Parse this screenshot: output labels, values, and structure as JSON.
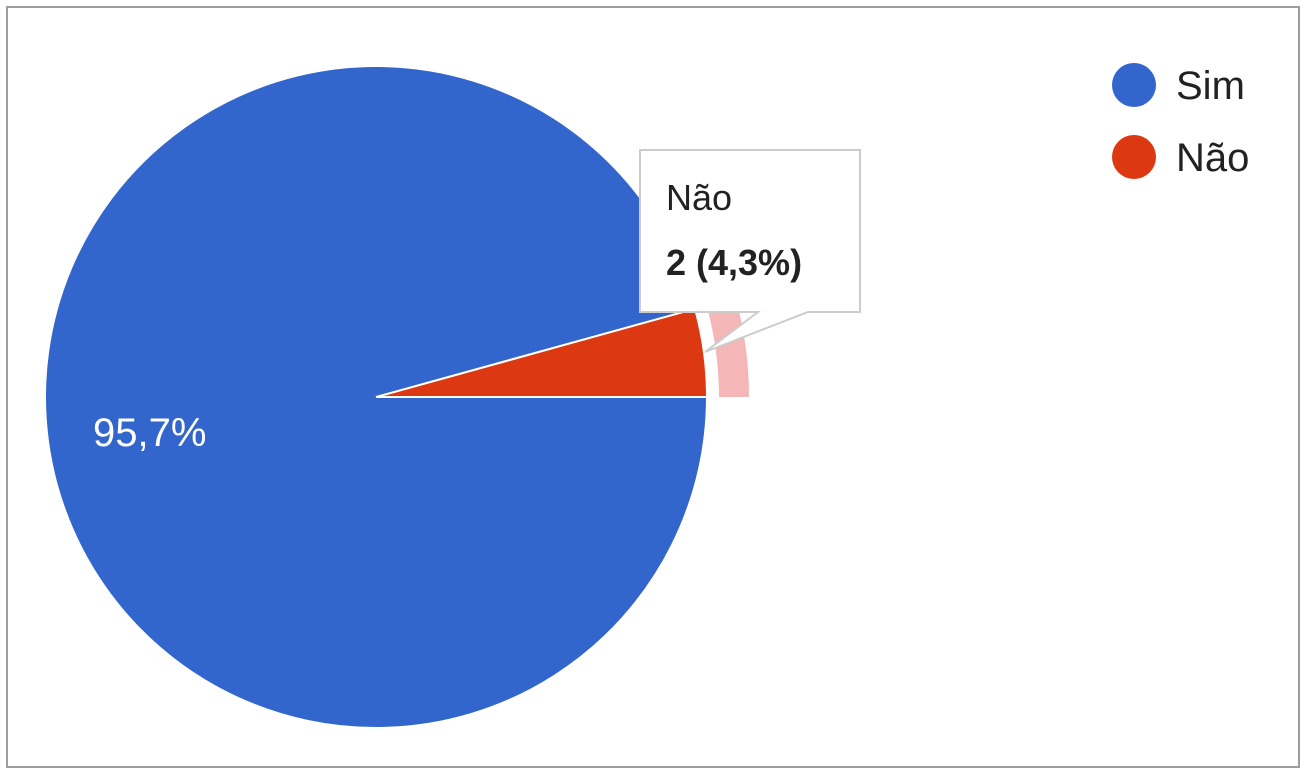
{
  "chart_data": {
    "type": "pie",
    "slices": [
      {
        "label": "Sim",
        "percent": 95.7,
        "percent_label": "95,7%",
        "color": "#3366cc"
      },
      {
        "label": "Não",
        "count": 2,
        "percent": 4.3,
        "percent_label": "4,3%",
        "color": "#dc3912"
      }
    ],
    "legend": {
      "position": "top-right",
      "entries": [
        "Sim",
        "Não"
      ]
    },
    "tooltip": {
      "slice": "Não",
      "title": "Não",
      "value_text": "2 (4,3%)"
    }
  }
}
